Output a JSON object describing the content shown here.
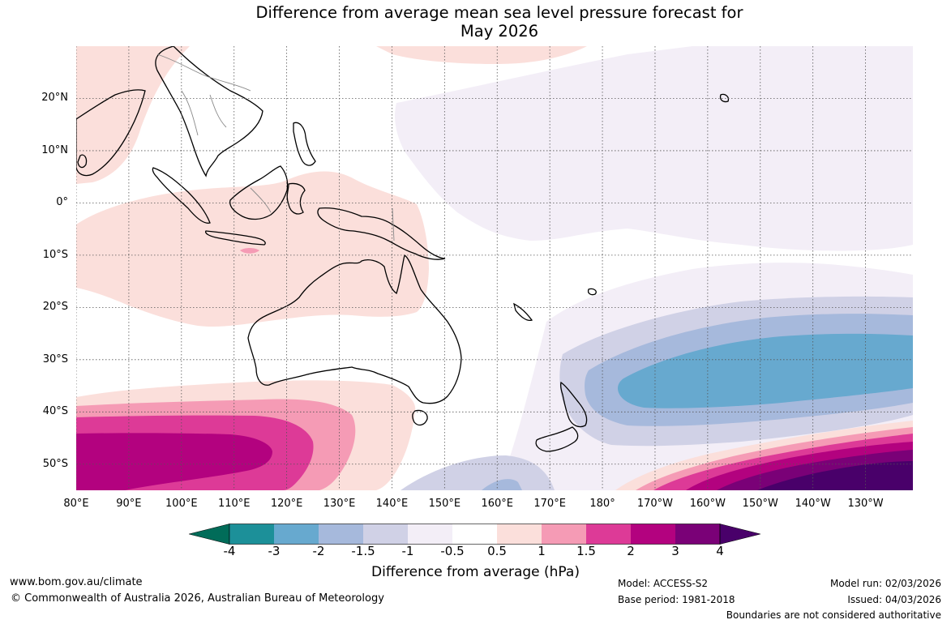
{
  "title": {
    "line1": "Difference from average mean sea level pressure forecast for",
    "line2": "May 2026"
  },
  "map": {
    "lat_labels": [
      "20°N",
      "10°N",
      "0°",
      "10°S",
      "20°S",
      "30°S",
      "40°S",
      "50°S"
    ],
    "lat_values": [
      20,
      10,
      0,
      -10,
      -20,
      -30,
      -40,
      -50
    ],
    "lon_labels": [
      "80°E",
      "90°E",
      "100°E",
      "110°E",
      "120°E",
      "130°E",
      "140°E",
      "150°E",
      "160°E",
      "170°E",
      "180°",
      "170°W",
      "160°W",
      "150°W",
      "140°W",
      "130°W"
    ],
    "lon_values": [
      80,
      90,
      100,
      110,
      120,
      130,
      140,
      150,
      160,
      170,
      180,
      190,
      200,
      210,
      220,
      230
    ],
    "extent": {
      "lon_min": 80,
      "lon_max": 239,
      "lat_min": -55,
      "lat_max": 30
    },
    "colors": {
      "pos_0_5_1": "#fbdfdb",
      "pos_1_1_5": "#f59bb5",
      "pos_1_5_2": "#dd3a97",
      "pos_2_3": "#b3027f",
      "pos_3_4": "#7a0177",
      "pos_gt4": "#49006a",
      "neg_0_5_1": "#f3eef7",
      "neg_1_1_5": "#d0d1e6",
      "neg_1_5_2": "#a6b9dc",
      "neg_2_3": "#67a9cf",
      "neg_3_4": "#1c9099",
      "neg_lt4": "#016c59",
      "coast": "#000000",
      "grid": "#555555"
    }
  },
  "colorbar": {
    "ticks": [
      "-4",
      "-3",
      "-2",
      "-1.5",
      "-1",
      "-0.5",
      "0.5",
      "1",
      "1.5",
      "2",
      "3",
      "4"
    ],
    "colors": [
      "#016c59",
      "#1c9099",
      "#67a9cf",
      "#a6b9dc",
      "#d0d1e6",
      "#f3eef7",
      "#ffffff",
      "#fbdfdb",
      "#f59bb5",
      "#dd3a97",
      "#b3027f",
      "#7a0177",
      "#49006a"
    ],
    "label": "Difference from average (hPa)"
  },
  "footer": {
    "url": "www.bom.gov.au/climate",
    "copyright": "© Commonwealth of Australia 2026, Australian Bureau of Meteorology",
    "model": "Model: ACCESS-S2",
    "base_period": "Base period: 1981-2018",
    "model_run": "Model run: 02/03/2026",
    "issued": "Issued: 04/03/2026",
    "disclaimer": "Boundaries are not considered authoritative"
  }
}
